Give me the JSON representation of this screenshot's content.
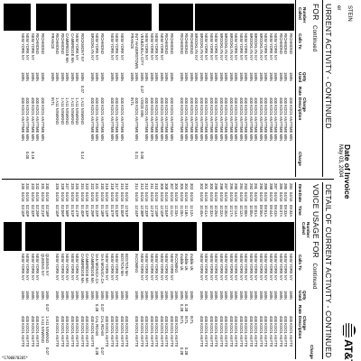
{
  "header": {
    "brand": "AT&T",
    "invoice_date_label": "Date of Invoice",
    "invoice_date_value": "May 03, 2004",
    "customer_name_fragment": "STEIN",
    "header_fragment_left": "er"
  },
  "left_section": {
    "title": "URRENT ACTIVITY - CONTINUED",
    "subtitle": "FOR",
    "continued": "Continued",
    "col_calls_to": "Calls To",
    "col_qnty_used": "Qnty Used",
    "col_rate": "Rate",
    "col_charge_desc": "Charge Description",
    "col_charge": "Charge",
    "col_number_called": "Number Called",
    "calls_to": [
      "RICHMOND",
      "RICHMOND",
      "RICHMOND",
      "NEW YORK NY",
      "NEW YORK NY",
      "NEW YORK NY",
      "BROOKLYN NY",
      "BROOKLYN NY",
      "BROOKLYN NY",
      "NEW YORK NY",
      "NEW YORK NY",
      "NEW YORK NY",
      "BROOKLYN NY",
      "BROOKLYN NY",
      "BROOKLYN NY",
      "NEW YORK NY",
      "NEW YORK NY",
      "NEW YORK NY",
      "BROOKLYN NY",
      "BROOKLYN NY",
      "RICHMOND",
      "RICHMOND",
      "RICHMOND",
      "",
      "RICHMOND",
      "RICHMOND",
      "NEW YORK NY",
      "NEW YORK NY",
      "NEW YORK NY",
      "NEW YORK NY",
      "VENEZUELA CITY",
      "INIT HAGERSTOWN",
      "FRANCE",
      "",
      "NEW YORK NY",
      "NEW YORK NY",
      "NEW YORK NY",
      "",
      "RICHMOND",
      "NEW YORK NY",
      "BROOKLYN NY",
      "",
      "ROCKMONT NY",
      "NEW YORK NY",
      "CAMBRIDGE MA",
      "CAMBRIDGE MA",
      "RICHMOND",
      "RICHMOND",
      "FRANCE",
      "",
      "RICHMOND",
      "RICHMOND",
      "NEW YORK NY",
      "NEW YORK NY",
      "NEW YORK NY"
    ],
    "qnty": [
      "1MIN",
      "1MIN",
      "1MIN",
      "1MIN",
      "1MIN",
      "1MIN",
      "1MIN",
      "1MIN",
      "1MIN",
      "1MIN",
      "1MIN",
      "1MIN",
      "1MIN",
      "1MIN",
      "1MIN",
      "1MIN",
      "1MIN",
      "1MIN",
      "1MIN",
      "1MIN",
      "1MIN",
      "1MIN",
      "1MIN",
      "",
      "1MIN",
      "1MIN",
      "1MIN",
      "1MIN",
      "1MIN",
      "1MIN",
      "1MIN",
      "1MIN",
      "1MIN",
      "",
      "1MIN",
      "1MIN",
      "1MIN",
      "",
      "1MIN",
      "1MIN",
      "1MIN",
      "",
      "1MIN",
      "1MIN",
      "1MIN",
      "1MIN",
      "1MIN",
      "1MIN",
      "1MIN",
      "",
      "1MIN",
      "1MIN",
      "1MIN",
      "1MIN",
      "1MIN"
    ],
    "rate": [
      "",
      "",
      "",
      "",
      "",
      "",
      "",
      "",
      "",
      "",
      "",
      "",
      "",
      "",
      "",
      "",
      "",
      "",
      "",
      "",
      "",
      "",
      "",
      "",
      "",
      "",
      "",
      "",
      "",
      "",
      "0.07",
      "",
      "",
      "",
      "",
      "",
      "",
      "",
      "",
      "",
      "",
      "",
      "0.07",
      "",
      "",
      "",
      "",
      "",
      "",
      "",
      "",
      "",
      "",
      ""
    ],
    "desc": [
      "400 KOO1 ANYTIME MIN",
      "400 KOO1 ANYTIME MIN",
      "400 KOO1 ANYTIME MIN",
      "400 KOO1 ANYTIME MIN",
      "400 KOO1 ANYTIME MIN",
      "400 KOO1 ANYTIME MIN",
      "400 KOO1 ANYTIME MIN",
      "400 KOO1 ANYTIME MIN",
      "400 KOO1 ANYTIME MIN",
      "400 KOO1 ANYTIME MIN",
      "400 KOO1 ANYTIME MIN",
      "400 KOO1 ANYTIME MIN",
      "400 KOO1 ANYTIME MIN",
      "400 KOO1 ANYTIME MIN",
      "400 KOO1 ANYTIME MIN",
      "400 KOO1 ANYTIME MIN",
      "400 KOO1 ANYTIME MIN",
      "400 KOO1 ANYTIME MIN",
      "400 KOO1 ANYTIME MIN",
      "400 KOO1 ANYTIME MIN",
      "400 KOO1 ANYTIME MIN",
      "400 KOO1 ANYTIME MIN",
      "400 KOO1 ANYTIME MIN",
      "",
      "400 KOO1 ANYTIME MIN",
      "400 KOO1 ANYTIME MIN",
      "400 KOO1 ANYTIME MIN",
      "400 KOO1 ANYTIME MIN",
      "400 KOO1 ANYTIME MIN",
      "400 KOO1 ANYTIME MIN",
      "VOICE MIN",
      "400 KOO1 ANYTIME MIN",
      "INTL",
      "",
      "400 KOO1 ANYTIME MIN",
      "400 KOO1 ANYTIME MIN",
      "400 KOO1 ANYTIME MIN",
      "",
      "400 KOO1 ANYTIME MIN",
      "400 KOO1 ANYTIME MIN",
      "400 KOO1 ANYTIME MIN",
      "",
      "1 A11 NXWKND",
      "1 A11 NXWKND",
      "1 A11 NXWKND",
      "1 A11 NXWKND",
      "1 A11 NXWKND",
      "1 A11 NXWKND",
      "INTL",
      "",
      "400 KOO1 ANYTIME MIN",
      "400 KOO1 ANYTIME MIN",
      "400 KOO1 ANYTIME MIN",
      "400 KOO1 ANYTIME MIN",
      "400 KOO1 ANYTIME MIN"
    ],
    "charge": [
      "",
      "",
      "",
      "",
      "",
      "",
      "",
      "",
      "",
      "",
      "",
      "",
      "",
      "",
      "",
      "",
      "",
      "",
      "",
      "",
      "",
      "",
      "",
      "",
      "",
      "",
      "",
      "",
      "",
      "",
      "0.00",
      "0.21",
      "",
      "",
      "",
      "",
      "",
      "",
      "",
      "",
      "",
      "",
      "0.14",
      "",
      "",
      "",
      "",
      "",
      "",
      "",
      "",
      "",
      "0.19",
      "0.00"
    ]
  },
  "right_section": {
    "title": "DETAIL OF CURRENT ACTIVITY - CONTINUED",
    "subtitle": "VOICE USAGE FOR",
    "continued": "Continued",
    "col_item": "Item",
    "col_date": "Date",
    "col_time": "Time",
    "col_number_called": "Number Called",
    "col_calls_to": "Calls To",
    "col_qnty_used": "Qnty Used",
    "col_rate": "Rate",
    "col_charge_desc": "Charge Description",
    "col_charge": "Charge",
    "items": [
      "284",
      "285",
      "286",
      "287",
      "288",
      "289",
      "290",
      "291",
      "292",
      "293",
      "294",
      "295",
      "296",
      "297",
      "298",
      "299",
      "300",
      "301",
      "302",
      "",
      "303",
      "304",
      "305",
      "306",
      "307",
      "308",
      "309",
      "310",
      "311",
      "312",
      "313",
      "314",
      "",
      "315",
      "316",
      "317",
      "318",
      "319",
      "320",
      "321",
      "322",
      "323",
      "324",
      "325",
      "326",
      "327",
      "328",
      "329",
      "",
      "330",
      "331",
      "332",
      "333",
      "334",
      "335"
    ],
    "dates": [
      "04/16",
      "04/16",
      "04/16",
      "04/16",
      "04/16",
      "04/16",
      "04/16",
      "04/16",
      "04/16",
      "04/16",
      "04/16",
      "04/16",
      "04/16",
      "04/16",
      "04/16",
      "04/16",
      "04/16",
      "04/16",
      "04/16",
      "",
      "04/16",
      "04/16",
      "04/16",
      "04/16",
      "04/16",
      "04/16",
      "04/16",
      "04/16",
      "04/16",
      "04/16",
      "04/16",
      "04/16",
      "",
      "04/16",
      "04/16",
      "04/16",
      "04/16",
      "04/16",
      "04/16",
      "04/16",
      "04/16",
      "04/16",
      "04/16",
      "04/16",
      "04/16",
      "04/16",
      "04/16",
      "04/16",
      "",
      "04/16",
      "04/16",
      "04/16",
      "04/16",
      "04/16",
      "04/16"
    ],
    "times": [
      "09:32A",
      "09:33A",
      "09:37A",
      "09:43A",
      "09:44A",
      "09:51A",
      "09:55A",
      "10:01A",
      "10:05A",
      "10:08A",
      "10:12A",
      "10:14A",
      "10:17A",
      "10:20A",
      "10:22A",
      "10:29A",
      "10:32A",
      "10:41A",
      "10:45A",
      "",
      "11:12A",
      "11:18A",
      "11:20A",
      "11:33A",
      "11:41A",
      "12:04P",
      "12:10P",
      "12:19P",
      "12:27P",
      "12:32P",
      "12:38P",
      "12:44P",
      "",
      "12:51P",
      "01:00P",
      "01:02P",
      "01:07P",
      "01:12P",
      "01:18P",
      "01:22P",
      "01:29P",
      "01:32P",
      "01:40P",
      "01:47P",
      "01:51P",
      "01:58P",
      "02:06P",
      "02:10P",
      "",
      "02:18P",
      "02:21P",
      "02:29P",
      "02:32P",
      "02:40P",
      "03:10P"
    ],
    "calls_to": [
      "NEW YORK NY",
      "NEW YORK NY",
      "NEW YORK NY",
      "NEW YORK NY",
      "NEW YORK NY",
      "NEW YORK NY",
      "NEW YORK NY",
      "NEW YORK NY",
      "NEW YORK NY",
      "NEW YORK NY",
      "NEW YORK NY",
      "NEW YORK NY",
      "NEW YORK NY",
      "NEW YORK NY",
      "NEW YORK NY",
      "NEW YORK NY",
      "NEW YORK NY",
      "NEW YORK NY",
      "NEW YORK NY",
      "",
      "mobile Uk",
      "mobile Uk",
      "mobile Uk",
      "INCOMING",
      "NEW YORK NY",
      "NEW YORK NY",
      "NEW YORK NY",
      "NEW YORK NY",
      "NEW YORK NY",
      "NEW YORK NY",
      "NEW YORK NY",
      "INCOMING",
      "",
      "BOSTON MA",
      "BOSTON MA",
      "NEW YORK NY",
      "NEW YORK NY",
      "NEW YORK NY",
      "SAN MONICA CA",
      "SAN MONICA CA",
      "CAMBRIDGE MA",
      "CAMBRIDGE MA",
      "CAMBRIDGE MA",
      "NEW YORK NY",
      "NEW YORK NY",
      "NEW YORK NY",
      "NEW YORK NY",
      "NEW YORK NY",
      "",
      "QUEENS NY",
      "QUEENS NY",
      "NEW YORK NY",
      "NEW YORK NY",
      "NEW YORK NY",
      "NEW YORK NY"
    ],
    "qnty": [
      "1MIN",
      "1MIN",
      "1MIN",
      "1MIN",
      "1MIN",
      "1MIN",
      "1MIN",
      "1MIN",
      "1MIN",
      "1MIN",
      "1MIN",
      "1MIN",
      "1MIN",
      "1MIN",
      "1MIN",
      "1MIN",
      "1MIN",
      "1MIN",
      "1MIN",
      "",
      "1MIN",
      "1MIN",
      "1MIN",
      "1MIN",
      "1MIN",
      "1MIN",
      "1MIN",
      "1MIN",
      "1MIN",
      "1MIN",
      "1MIN",
      "1MIN",
      "",
      "1MIN",
      "1MIN",
      "1MIN",
      "1MIN",
      "1MIN",
      "1MIN",
      "1MIN",
      "1MIN",
      "1MIN",
      "1MIN",
      "1MIN",
      "1MIN",
      "1MIN",
      "1MIN",
      "1MIN",
      "",
      "1MIN",
      "1MIN",
      "1MIN",
      "1MIN",
      "1MIN",
      "1MIN"
    ],
    "rate": [
      "",
      "",
      "",
      "",
      "",
      "",
      "",
      "",
      "",
      "",
      "",
      "",
      "",
      "",
      "",
      "",
      "",
      "",
      "",
      "",
      "",
      "0.28",
      "0.28",
      "",
      "",
      "",
      "",
      "",
      "",
      "",
      "",
      "",
      "",
      "",
      "",
      "",
      "",
      "",
      "0.07",
      "0.28",
      "",
      "",
      "",
      "",
      "",
      "",
      "",
      "",
      "",
      "0.07",
      "",
      "",
      "",
      "",
      ""
    ],
    "desc": [
      "400 KOO1 ANYTIME MIN",
      "400 KOO1 ANYTIME MIN",
      "400 KOO1 ANYTIME MIN",
      "400 KOO1 ANYTIME MIN",
      "400 KOO1 ANYTIME MIN",
      "400 KOO1 ANYTIME MIN",
      "400 KOO1 ANYTIME MIN",
      "400 KOO1 ANYTIME MIN",
      "400 KOO1 ANYTIME MIN",
      "400 KOO1 ANYTIME MIN",
      "400 KOO1 ANYTIME MIN",
      "400 KOO1 ANYTIME MIN",
      "400 KOO1 ANYTIME MIN",
      "400 KOO1 ANYTIME MIN",
      "400 KOO1 ANYTIME MIN",
      "400 KOO1 ANYTIME MIN",
      "400 KOO1 ANYTIME MIN",
      "400 KOO1 ANYTIME MIN",
      "400 KOO1 ANYTIME MIN",
      "",
      "INTL",
      "INTL",
      "INTL",
      "400 KOO1 ANYTIME MIN",
      "400 KOO1 ANYTIME MIN",
      "400 KOO1 ANYTIME MIN",
      "400 KOO1 ANYTIME MIN",
      "400 KOO1 ANYTIME MIN",
      "400 KOO1 ANYTIME MIN",
      "400 KOO1 ANYTIME MIN",
      "400 KOO1 ANYTIME MIN",
      "400 KOO1 ANYTIME MIN",
      "",
      "400 KOO1 ANYTIME MIN",
      "400 KOO1 ANYTIME MIN",
      "400 KOO1 ANYTIME MIN",
      "400 KOO1 ANYTIME MIN",
      "400 KOO1 ANYTIME MIN",
      "CAL ROAM",
      "CAL ROAM",
      "400 KOO1 ANYTIME MIN",
      "400 KOO1 ANYTIME MIN",
      "400 KOO1 ANYTIME MIN",
      "400 KOO1 ANYTIME MIN",
      "400 KOO1 ANYTIME MIN",
      "400 KOO1 ANYTIME MIN",
      "400 KOO1 ANYTIME MIN",
      "400 KOO1 ANYTIME MIN",
      "",
      "1 A11 NXWKND",
      "1 A11 NXWKND",
      "400 KOO1 ANYTIME MIN",
      "400 KOO1 ANYTIME MIN",
      "400 KOO1 ANYTIME MIN",
      "400 KOO1 ANYTIME MIN"
    ],
    "charge": [
      "",
      "",
      "",
      "",
      "",
      "",
      "",
      "",
      "",
      "",
      "",
      "",
      "",
      "",
      "",
      "",
      "",
      "",
      "",
      "",
      "",
      "0.28",
      "0.28",
      "",
      "",
      "",
      "",
      "",
      "",
      "",
      "",
      "",
      "",
      "",
      "",
      "",
      "",
      "",
      "0.07",
      "0.28",
      "",
      "",
      "",
      "",
      "",
      "",
      "",
      "",
      "",
      "0.07",
      "",
      "",
      "",
      "",
      ""
    ]
  },
  "footer": {
    "barcode_text": "*1700070205*"
  }
}
